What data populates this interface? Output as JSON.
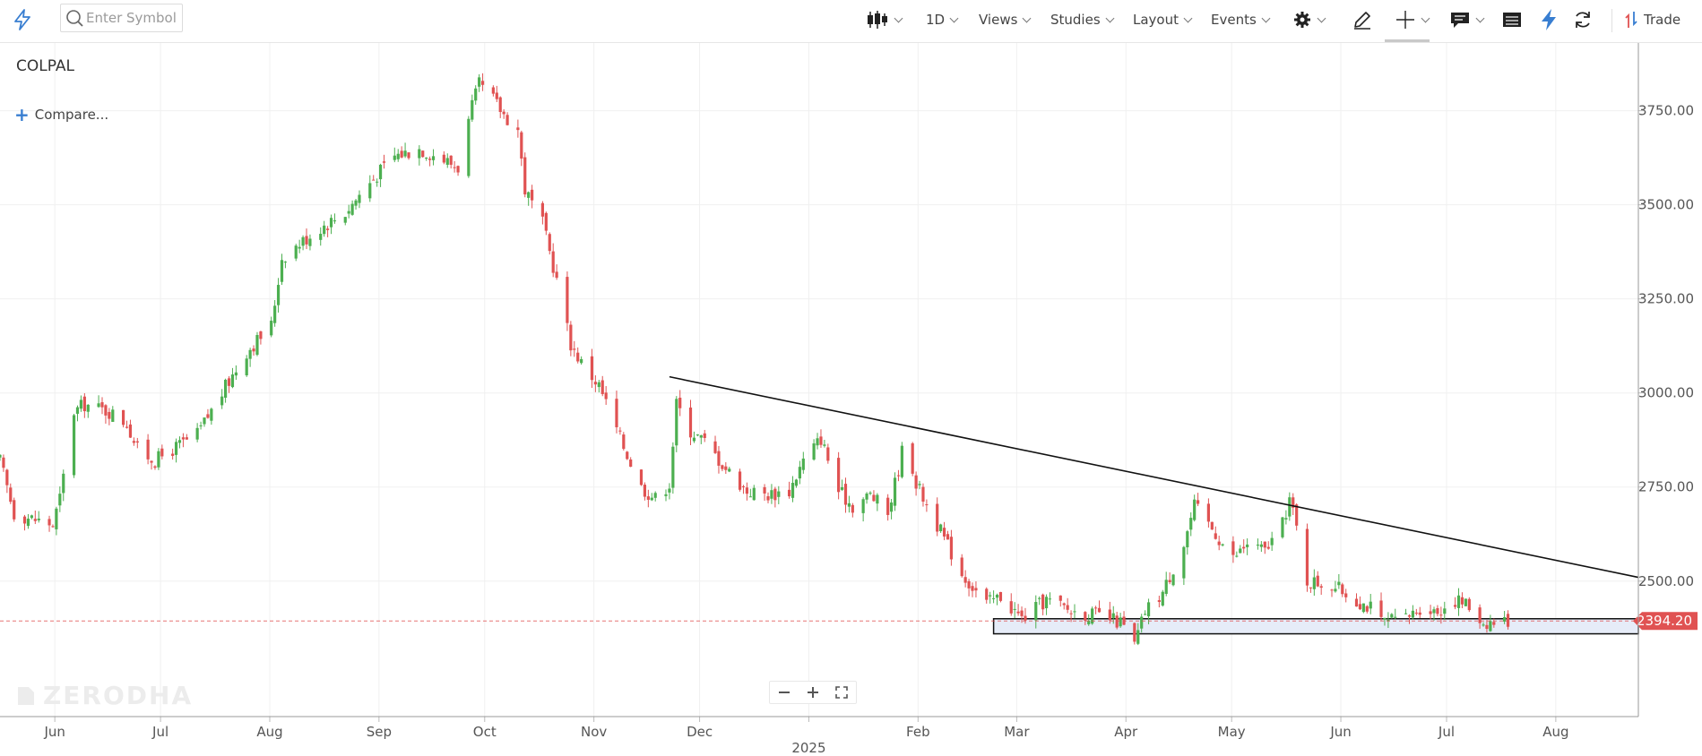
{
  "toolbar": {
    "search_placeholder": "Enter Symbol",
    "interval": "1D",
    "views": "Views",
    "studies": "Studies",
    "layout": "Layout",
    "events": "Events",
    "trade": "Trade"
  },
  "symbol": "COLPAL",
  "compare_label": "Compare...",
  "watermark": "ZERODHA",
  "colors": {
    "up": "#4caf50",
    "down": "#e05252",
    "price_tag": "#e05252",
    "accent": "#387ed1",
    "rect_fill": "#e6ecf8"
  },
  "chart_data": {
    "type": "candlestick",
    "x_ticks": [
      "Jun",
      "Jul",
      "Aug",
      "Sep",
      "Oct",
      "Nov",
      "Dec",
      "2025",
      "Feb",
      "Mar",
      "Apr",
      "May",
      "Jun",
      "Jul",
      "Aug"
    ],
    "y_ticks": [
      3750.0,
      3500.0,
      3250.0,
      3000.0,
      2750.0,
      2500.0
    ],
    "ylim": [
      2140,
      3930
    ],
    "last_price": 2394.2,
    "last_price_label": "2394.20",
    "date_range": [
      "2024-05-20",
      "2025-07-22"
    ],
    "price_path": [
      [
        "2024-05-20",
        2820
      ],
      [
        "2024-05-24",
        2680
      ],
      [
        "2024-06-04",
        2650
      ],
      [
        "2024-06-06",
        2720
      ],
      [
        "2024-06-10",
        2950
      ],
      [
        "2024-06-13",
        2970
      ],
      [
        "2024-06-20",
        2950
      ],
      [
        "2024-06-25",
        2920
      ],
      [
        "2024-06-28",
        2850
      ],
      [
        "2024-07-03",
        2820
      ],
      [
        "2024-07-08",
        2850
      ],
      [
        "2024-07-15",
        2890
      ],
      [
        "2024-07-22",
        3000
      ],
      [
        "2024-07-29",
        3110
      ],
      [
        "2024-08-05",
        3180
      ],
      [
        "2024-08-08",
        3360
      ],
      [
        "2024-08-12",
        3390
      ],
      [
        "2024-08-19",
        3440
      ],
      [
        "2024-08-26",
        3480
      ],
      [
        "2024-09-02",
        3560
      ],
      [
        "2024-09-09",
        3630
      ],
      [
        "2024-09-16",
        3650
      ],
      [
        "2024-09-23",
        3620
      ],
      [
        "2024-09-27",
        3600
      ],
      [
        "2024-10-01",
        3760
      ],
      [
        "2024-10-03",
        3820
      ],
      [
        "2024-10-07",
        3780
      ],
      [
        "2024-10-10",
        3740
      ],
      [
        "2024-10-14",
        3700
      ],
      [
        "2024-10-16",
        3540
      ],
      [
        "2024-10-21",
        3450
      ],
      [
        "2024-10-25",
        3300
      ],
      [
        "2024-10-29",
        3130
      ],
      [
        "2024-11-01",
        3080
      ],
      [
        "2024-11-06",
        3020
      ],
      [
        "2024-11-12",
        2880
      ],
      [
        "2024-11-18",
        2750
      ],
      [
        "2024-11-22",
        2720
      ],
      [
        "2024-11-26",
        2760
      ],
      [
        "2024-11-28",
        2970
      ],
      [
        "2024-12-02",
        2900
      ],
      [
        "2024-12-06",
        2870
      ],
      [
        "2024-12-12",
        2800
      ],
      [
        "2024-12-18",
        2740
      ],
      [
        "2024-12-24",
        2730
      ],
      [
        "2024-12-30",
        2740
      ],
      [
        "2025-01-03",
        2820
      ],
      [
        "2025-01-08",
        2880
      ],
      [
        "2025-01-13",
        2740
      ],
      [
        "2025-01-17",
        2700
      ],
      [
        "2025-01-22",
        2730
      ],
      [
        "2025-01-27",
        2680
      ],
      [
        "2025-01-30",
        2800
      ],
      [
        "2025-02-01",
        2890
      ],
      [
        "2025-02-04",
        2760
      ],
      [
        "2025-02-10",
        2650
      ],
      [
        "2025-02-17",
        2520
      ],
      [
        "2025-02-24",
        2440
      ],
      [
        "2025-02-28",
        2460
      ],
      [
        "2025-03-06",
        2400
      ],
      [
        "2025-03-13",
        2450
      ],
      [
        "2025-03-20",
        2420
      ],
      [
        "2025-03-27",
        2410
      ],
      [
        "2025-04-03",
        2390
      ],
      [
        "2025-04-07",
        2330
      ],
      [
        "2025-04-10",
        2420
      ],
      [
        "2025-04-15",
        2470
      ],
      [
        "2025-04-21",
        2600
      ],
      [
        "2025-04-24",
        2700
      ],
      [
        "2025-04-29",
        2640
      ],
      [
        "2025-05-05",
        2560
      ],
      [
        "2025-05-09",
        2600
      ],
      [
        "2025-05-14",
        2580
      ],
      [
        "2025-05-19",
        2650
      ],
      [
        "2025-05-21",
        2720
      ],
      [
        "2025-05-23",
        2640
      ],
      [
        "2025-05-26",
        2500
      ],
      [
        "2025-06-02",
        2490
      ],
      [
        "2025-06-09",
        2450
      ],
      [
        "2025-06-13",
        2430
      ],
      [
        "2025-06-16",
        2390
      ],
      [
        "2025-06-23",
        2400
      ],
      [
        "2025-06-27",
        2430
      ],
      [
        "2025-07-02",
        2420
      ],
      [
        "2025-07-07",
        2450
      ],
      [
        "2025-07-10",
        2440
      ],
      [
        "2025-07-15",
        2390
      ],
      [
        "2025-07-22",
        2394
      ]
    ],
    "trendline": {
      "start": [
        "2024-11-26",
        3043
      ],
      "end": [
        "2025-08-28",
        2510
      ]
    },
    "support_zone": {
      "start": "2025-02-26",
      "end": "2025-08-28",
      "low": 2360,
      "high": 2400
    }
  }
}
